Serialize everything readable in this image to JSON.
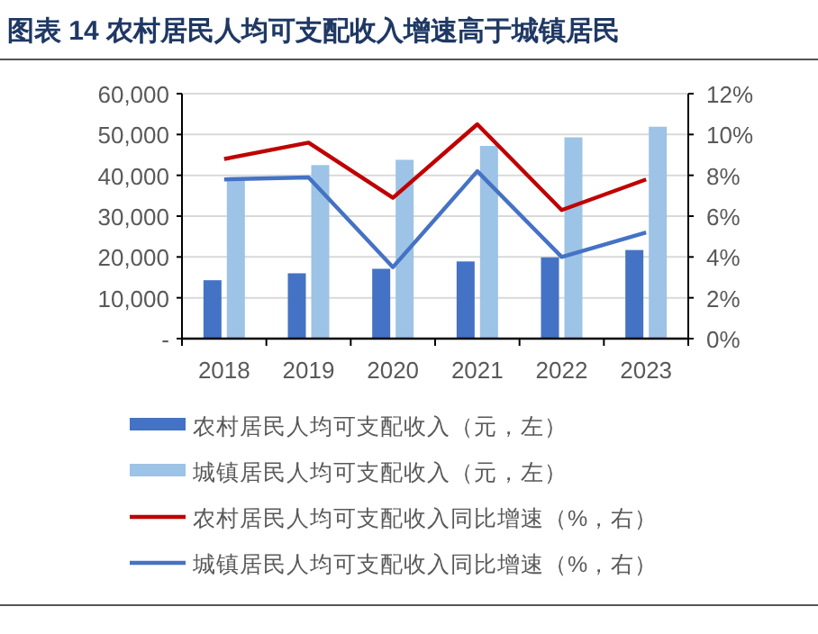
{
  "chart_data": {
    "type": "bar",
    "title": "图表 14  农村居民人均可支配收入增速高于城镇居民",
    "categories": [
      "2018",
      "2019",
      "2020",
      "2021",
      "2022",
      "2023"
    ],
    "series": [
      {
        "name": "农村居民人均可支配收入（元，左）",
        "color": "#4472c4",
        "values": [
          14300,
          16000,
          17100,
          18900,
          19900,
          21700
        ]
      },
      {
        "name": "城镇居民人均可支配收入（元，左）",
        "color": "#9dc3e6",
        "values": [
          39500,
          42500,
          43800,
          47200,
          49300,
          51900
        ]
      },
      {
        "name": "农村居民人均可支配收入同比增速（%，右）",
        "type": "line",
        "axis": "y2",
        "color": "#c00000",
        "values": [
          8.8,
          9.6,
          6.9,
          10.5,
          6.3,
          7.8
        ]
      },
      {
        "name": "城镇居民人均可支配收入同比增速（%，右）",
        "type": "line",
        "axis": "y2",
        "color": "#4472c4",
        "values": [
          7.8,
          7.9,
          3.5,
          8.2,
          4.0,
          5.2
        ]
      }
    ],
    "ylim": [
      0,
      60000
    ],
    "yticks": [
      {
        "value": 0,
        "label": "-"
      },
      {
        "value": 10000,
        "label": "10,000"
      },
      {
        "value": 20000,
        "label": "20,000"
      },
      {
        "value": 30000,
        "label": "30,000"
      },
      {
        "value": 40000,
        "label": "40,000"
      },
      {
        "value": 50000,
        "label": "50,000"
      },
      {
        "value": 60000,
        "label": "60,000"
      }
    ],
    "y2lim": [
      0,
      12
    ],
    "y2ticks": [
      {
        "value": 0,
        "label": "0%"
      },
      {
        "value": 2,
        "label": "2%"
      },
      {
        "value": 4,
        "label": "4%"
      },
      {
        "value": 6,
        "label": "6%"
      },
      {
        "value": 8,
        "label": "8%"
      },
      {
        "value": 10,
        "label": "10%"
      },
      {
        "value": 12,
        "label": "12%"
      }
    ],
    "grid": "y",
    "legend": "bottom",
    "marker": "none"
  }
}
